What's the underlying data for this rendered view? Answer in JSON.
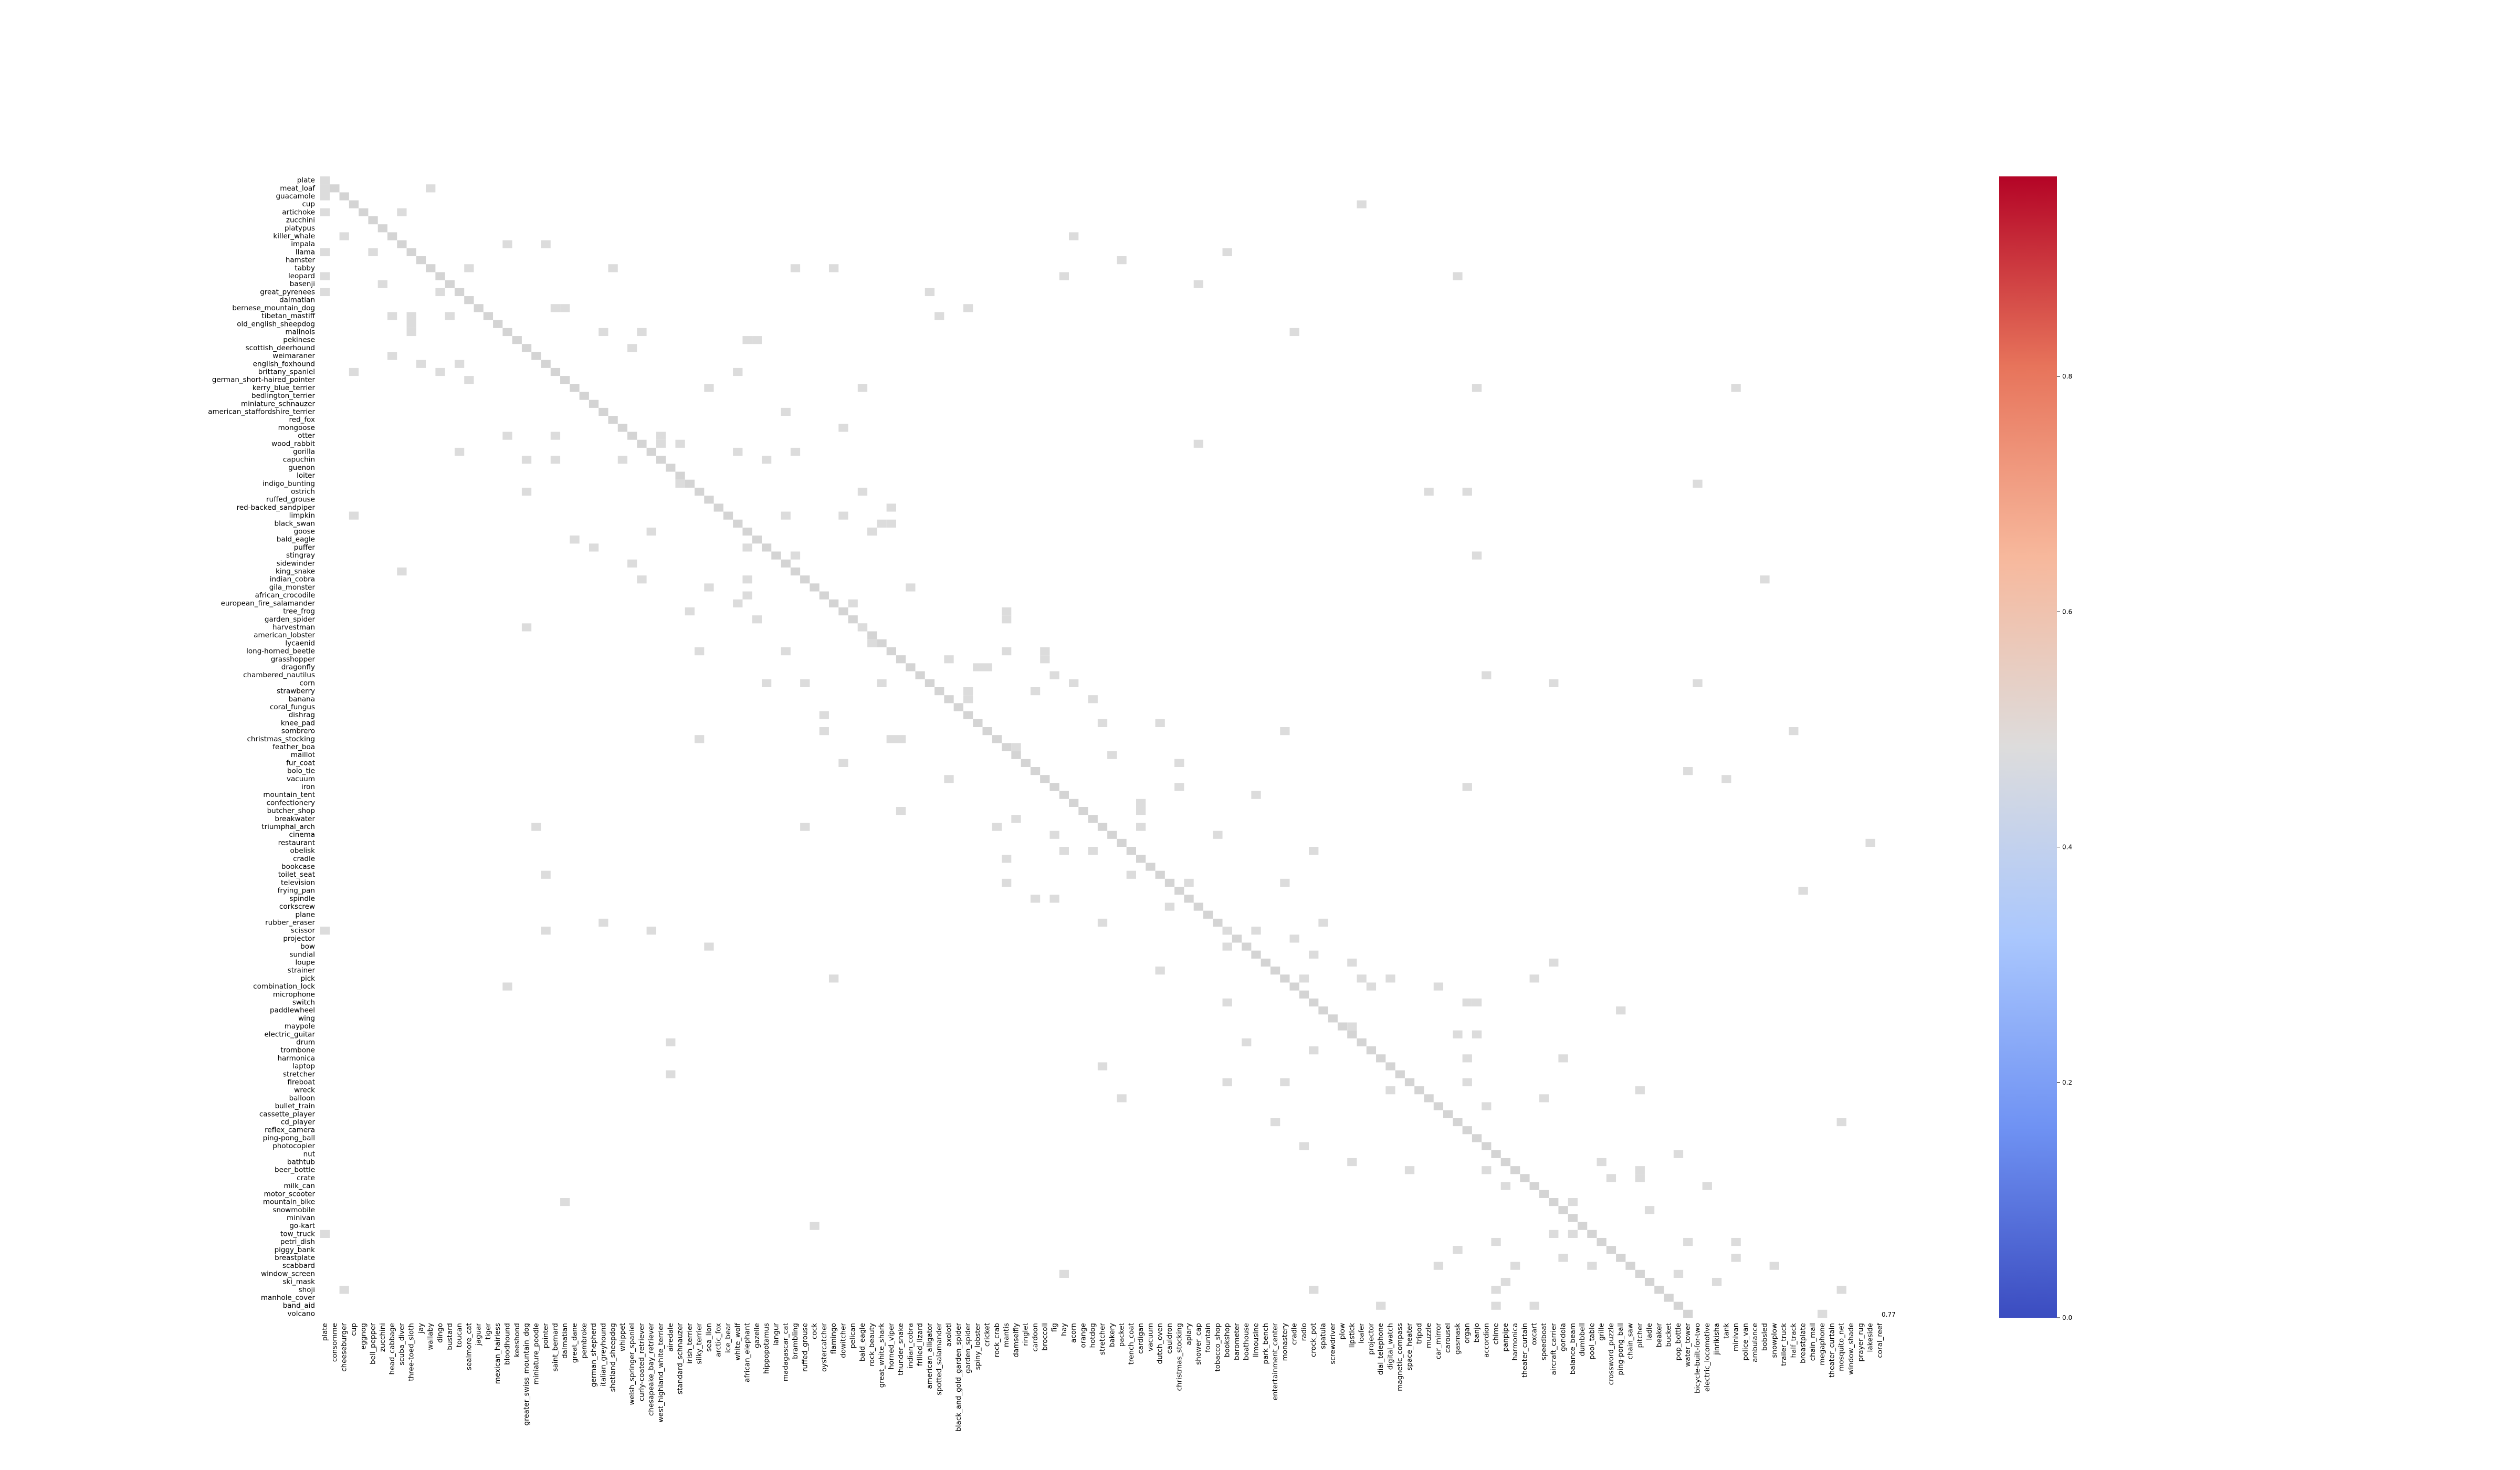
{
  "chart_data": {
    "type": "heatmap",
    "title": "",
    "xlabel": "",
    "ylabel": "",
    "colormap": "coolwarm",
    "colormap_stops": [
      "#3b4cc0",
      "#6f92f3",
      "#aac7fd",
      "#dddcdc",
      "#f7b89c",
      "#e7745b",
      "#b40426"
    ],
    "colorbar": {
      "range": [
        0.0,
        0.97
      ],
      "ticks": [
        0.0,
        0.2,
        0.4,
        0.6,
        0.8
      ],
      "tick_labels": [
        "0.0",
        "0.2",
        "0.4",
        "0.6",
        "0.8"
      ]
    },
    "cell_annotation": "0.77",
    "row_labels": [
      "plate",
      "meat_loaf",
      "guacamole",
      "cup",
      "artichoke",
      "zucchini",
      "platypus",
      "killer_whale",
      "impala",
      "llama",
      "hamster",
      "tabby",
      "leopard",
      "basenji",
      "great_pyrenees",
      "dalmatian",
      "bernese_mountain_dog",
      "tibetan_mastiff",
      "old_english_sheepdog",
      "malinois",
      "pekinese",
      "scottish_deerhound",
      "weimaraner",
      "english_foxhound",
      "brittany_spaniel",
      "german_short-haired_pointer",
      "kerry_blue_terrier",
      "bedlington_terrier",
      "miniature_schnauzer",
      "american_staffordshire_terrier",
      "red_fox",
      "mongoose",
      "otter",
      "wood_rabbit",
      "gorilla",
      "capuchin",
      "guenon",
      "loiter",
      "indigo_bunting",
      "ostrich",
      "ruffed_grouse",
      "red-backed_sandpiper",
      "limpkin",
      "black_swan",
      "goose",
      "bald_eagle",
      "puffer",
      "stingray",
      "sidewinder",
      "king_snake",
      "indian_cobra",
      "gila_monster",
      "african_crocodile",
      "european_fire_salamander",
      "tree_frog",
      "garden_spider",
      "harvestman",
      "american_lobster",
      "lycaenid",
      "long-horned_beetle",
      "grasshopper",
      "dragonfly",
      "chambered_nautilus",
      "corn",
      "strawberry",
      "banana",
      "coral_fungus",
      "dishrag",
      "knee_pad",
      "sombrero",
      "christmas_stocking",
      "feather_boa",
      "maillot",
      "fur_coat",
      "bolo_tie",
      "vacuum",
      "iron",
      "mountain_tent",
      "confectionery",
      "butcher_shop",
      "breakwater",
      "triumphal_arch",
      "cinema",
      "restaurant",
      "obelisk",
      "cradle",
      "bookcase",
      "toilet_seat",
      "television",
      "frying_pan",
      "spindle",
      "corkscrew",
      "plane",
      "rubber_eraser",
      "scissor",
      "projector",
      "bow",
      "sundial",
      "loupe",
      "strainer",
      "pick",
      "combination_lock",
      "microphone",
      "switch",
      "paddlewheel",
      "wing",
      "maypole",
      "electric_guitar",
      "drum",
      "trombone",
      "harmonica",
      "laptop",
      "stretcher",
      "fireboat",
      "wreck",
      "balloon",
      "bullet_train",
      "cassette_player",
      "cd_player",
      "reflex_camera",
      "ping-pong_ball",
      "photocopier",
      "nut",
      "bathtub",
      "beer_bottle",
      "crate",
      "milk_can",
      "motor_scooter",
      "mountain_bike",
      "snowmobile",
      "minivan",
      "go-kart",
      "tow_truck",
      "petri_dish",
      "piggy_bank",
      "breastplate",
      "scabbard",
      "window_screen",
      "ski_mask",
      "shoji",
      "manhole_cover",
      "band_aid",
      "volcano"
    ],
    "col_labels": [
      "plate",
      "consomme",
      "cheeseburger",
      "cup",
      "eggnog",
      "bell_pepper",
      "zucchini",
      "head_cabbage",
      "scuba_diver",
      "three-toed_sloth",
      "jay",
      "wallaby",
      "dingo",
      "bustard",
      "toucan",
      "sealmore_cat",
      "jaguar",
      "tiger",
      "mexican_hairless",
      "bloodhound",
      "keeshond",
      "greater_swiss_mountain_dog",
      "miniature_poodle",
      "pointer",
      "saint_bernard",
      "dalmatian",
      "great_dane",
      "pembroke",
      "german_shepherd",
      "italian_greyhound",
      "shetland_sheepdog",
      "whippet",
      "welsh_springer_spaniel",
      "curly-coated_retriever",
      "chesapeake_bay_retriever",
      "west_highland_white_terrier",
      "airedale",
      "standard_schnauzer",
      "irish_terrier",
      "silky_terrier",
      "sea_lion",
      "arctic_fox",
      "ice_bear",
      "white_wolf",
      "african_elephant",
      "gazelle",
      "hippopotamus",
      "langur",
      "madagascar_cat",
      "brambling",
      "ruffed_grouse",
      "cock",
      "oystercatcher",
      "flamingo",
      "dowitcher",
      "pelican",
      "bald_eagle",
      "rock_beauty",
      "great_white_shark",
      "horned_viper",
      "thunder_snake",
      "indian_cobra",
      "frilled_lizard",
      "american_alligator",
      "spotted_salamander",
      "axolotl",
      "black_and_gold_garden_spider",
      "garden_spider",
      "spiny_lobster",
      "cricket",
      "rock_crab",
      "mantis",
      "damselfly",
      "ringlet",
      "cardoon",
      "broccoli",
      "fig",
      "hay",
      "acorn",
      "orange",
      "hotdog",
      "stretcher",
      "bakery",
      "packet",
      "trench_coat",
      "cardigan",
      "vacuum",
      "dutch_oven",
      "cauldron",
      "christmas_stocking",
      "apiary",
      "shower_cap",
      "fountain",
      "tobacco_shop",
      "bookshop",
      "barometer",
      "boathouse",
      "limousine",
      "park_bench",
      "entertainment_center",
      "monastery",
      "cradle",
      "radio",
      "crock_pot",
      "spatula",
      "screwdriver",
      "plow",
      "lipstick",
      "loafer",
      "projector",
      "dial_telephone",
      "digital_watch",
      "magnetic_compass",
      "space_heater",
      "tripod",
      "muzzle",
      "car_mirror",
      "carousel",
      "gasmask",
      "organ",
      "banjo",
      "accordion",
      "chime",
      "panpipe",
      "harmonica",
      "theater_curtain",
      "oxcart",
      "speedboat",
      "aircraft_carrier",
      "gondola",
      "balance_beam",
      "dumbbell",
      "pool_table",
      "grille",
      "crossword_puzzle",
      "ping-pong_ball",
      "chain_saw",
      "pitcher",
      "ladle",
      "beaker",
      "bucket",
      "pop_bottle",
      "water_tower",
      "bicycle-built-for-two",
      "electric_locomotive",
      "jinrikisha",
      "tank",
      "minivan",
      "police_van",
      "ambulance",
      "bobsled",
      "snowplow",
      "trailer_truck",
      "half_track",
      "breastplate",
      "chain_mail",
      "megaphone",
      "theater_curtain",
      "mosquito_net",
      "window_shade",
      "prayer_rug",
      "lakeside",
      "coral_reef"
    ]
  }
}
